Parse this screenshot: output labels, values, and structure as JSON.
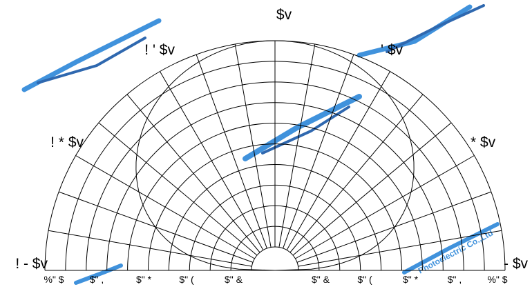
{
  "diagram": {
    "type": "polar-radiation-pattern",
    "line_color": "#000000",
    "background": "#ffffff",
    "watermark_color": "#1f7fd6",
    "angle_labels": {
      "top": "$v",
      "upper_left": "! ' $v",
      "upper_right": "' $v",
      "middle_left": "! * $v",
      "middle_right": "* $v",
      "lower_left": "! - $v",
      "lower_right": "- $v"
    },
    "radial_labels": [
      "%\" $",
      "$\" ,",
      "$\" *",
      "$\" (",
      "$\" &",
      "$\" &",
      "$\" (",
      "$\" *",
      "$\" ,",
      "%\" $"
    ],
    "watermark_texts": [
      "Photoelectric Co.,Ltd"
    ]
  }
}
